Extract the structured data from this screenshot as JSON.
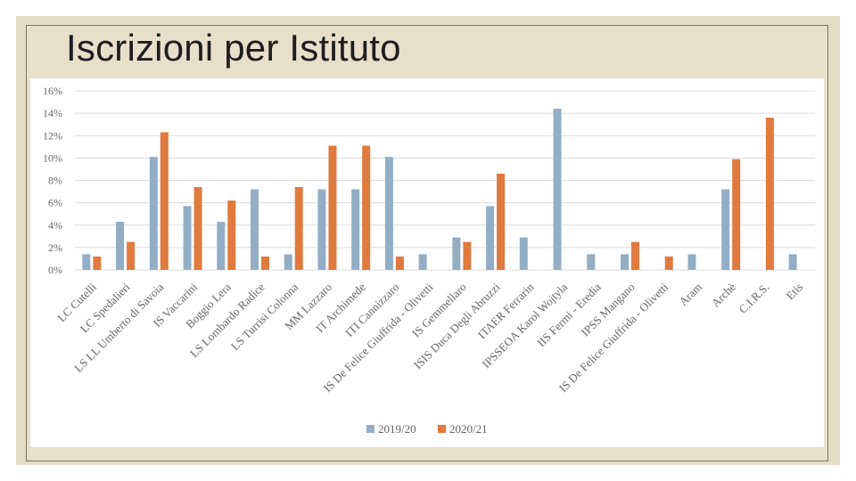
{
  "slide": {
    "title": "Iscrizioni per Istituto"
  },
  "colors": {
    "series_2019": "#93aec4",
    "series_2020": "#e07a3e",
    "gridline": "#dcdcdc",
    "tick_text": "#666666",
    "frame": "#e5dcc6"
  },
  "chart_data": {
    "type": "bar",
    "title": "",
    "xlabel": "",
    "ylabel": "",
    "ylim": [
      0,
      16
    ],
    "yticks": [
      "0%",
      "2%",
      "4%",
      "6%",
      "8%",
      "10%",
      "12%",
      "14%",
      "16%"
    ],
    "grid": true,
    "legend_placement": "bottom",
    "categories": [
      "LC Cutelli",
      "LC Spedalieri",
      "LS LL Umberto di Savoia",
      "IS Vaccarini",
      "Boggio Lera",
      "LS Lombardo Radice",
      "LS Turrisi Colonna",
      "MM Lazzaro",
      "IT Archimede",
      "ITI Cannizzaro",
      "IS De Felice Giuffrida - Olivetti",
      "IS Gemmellaro",
      "ISIS Duca Degli Abruzzi",
      "ITAER Ferrarin",
      "IPSSEOA Karol Wojtyla",
      "IIS Fermi - Eredia",
      "IPSS Mangano",
      "IS De Felice Giuffrida - Olivetti",
      "Aram",
      "Archè",
      "C.I.R.S.",
      "Etis"
    ],
    "series": [
      {
        "name": "2019/20",
        "values": [
          1.4,
          4.3,
          10.1,
          5.7,
          4.3,
          7.2,
          1.4,
          7.2,
          7.2,
          10.1,
          1.4,
          2.9,
          5.7,
          2.9,
          14.4,
          1.4,
          1.4,
          0,
          1.4,
          7.2,
          0,
          1.4
        ]
      },
      {
        "name": "2020/21",
        "values": [
          1.2,
          2.5,
          12.3,
          7.4,
          6.2,
          1.2,
          7.4,
          11.1,
          11.1,
          1.2,
          0,
          2.5,
          8.6,
          0,
          0,
          0,
          2.5,
          1.2,
          0,
          9.9,
          13.6,
          0
        ]
      }
    ]
  }
}
